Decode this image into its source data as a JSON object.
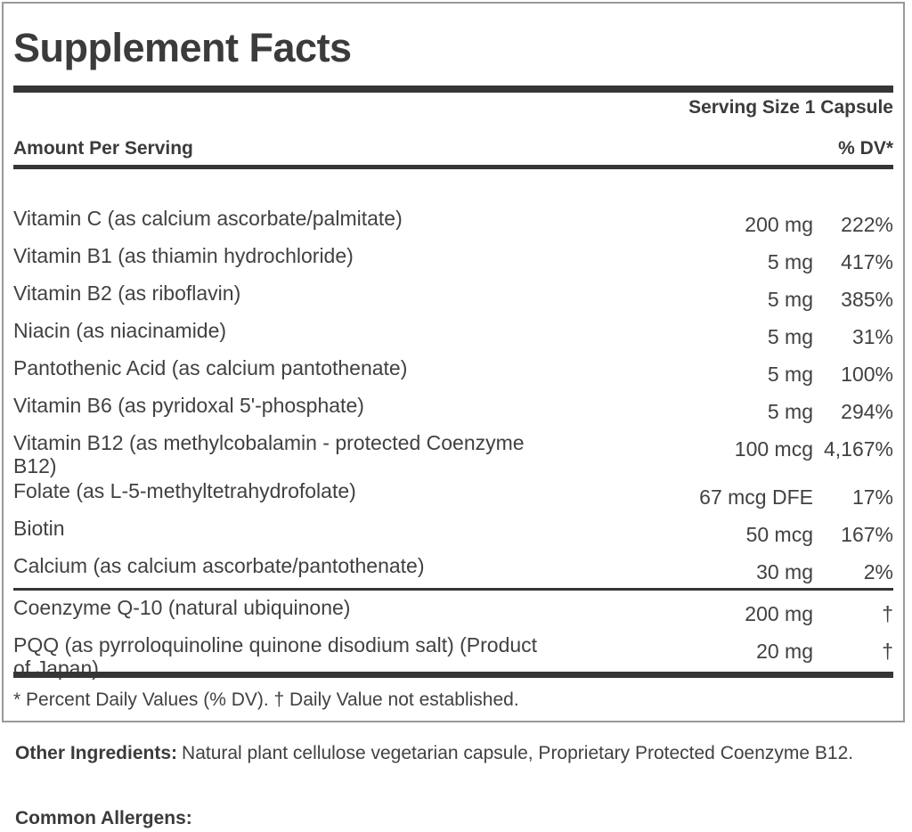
{
  "panel": {
    "title": "Supplement Facts",
    "serving_size": "Serving Size 1 Capsule",
    "header": {
      "amount_label": "Amount Per Serving",
      "dv_label": "% DV*"
    },
    "rows": [
      {
        "name": "Vitamin C (as calcium ascorbate/palmitate)",
        "amount": "200 mg",
        "dv": "222%"
      },
      {
        "name": "Vitamin B1 (as thiamin hydrochloride)",
        "amount": "5 mg",
        "dv": "417%"
      },
      {
        "name": "Vitamin B2 (as riboflavin)",
        "amount": "5 mg",
        "dv": "385%"
      },
      {
        "name": "Niacin (as niacinamide)",
        "amount": "5 mg",
        "dv": "31%"
      },
      {
        "name": "Pantothenic Acid (as calcium pantothenate)",
        "amount": "5 mg",
        "dv": "100%"
      },
      {
        "name": "Vitamin B6 (as pyridoxal 5'-phosphate)",
        "amount": "5 mg",
        "dv": "294%"
      },
      {
        "name": "Vitamin B12 (as methylcobalamin - protected Coenzyme",
        "name2": "B12)",
        "amount": "100 mcg",
        "dv": "4,167%"
      },
      {
        "name": "Folate (as L-5-methyltetrahydrofolate)",
        "amount": "67 mcg DFE",
        "dv": "17%"
      },
      {
        "name": "Biotin",
        "amount": "50 mcg",
        "dv": "167%"
      },
      {
        "name": "Calcium (as calcium ascorbate/pantothenate)",
        "amount": "30 mg",
        "dv": "2%",
        "divider_after": true
      },
      {
        "name": "Coenzyme Q-10 (natural ubiquinone)",
        "amount": "200 mg",
        "dv": "†"
      },
      {
        "name": "PQQ (as pyrroloquinoline quinone disodium salt) (Product",
        "name2": "of Japan)",
        "amount": "20 mg",
        "dv": "†"
      }
    ],
    "footnote": "* Percent Daily Values (% DV). † Daily Value not established."
  },
  "below": {
    "other_ingredients_label": "Other Ingredients:",
    "other_ingredients_text": "Natural plant cellulose vegetarian capsule, Proprietary Protected Coenzyme B12.",
    "allergens_label": "Common Allergens:"
  },
  "colors": {
    "text": "#3d3d3d",
    "bar": "#363636",
    "border": "#999999",
    "background": "#ffffff"
  }
}
